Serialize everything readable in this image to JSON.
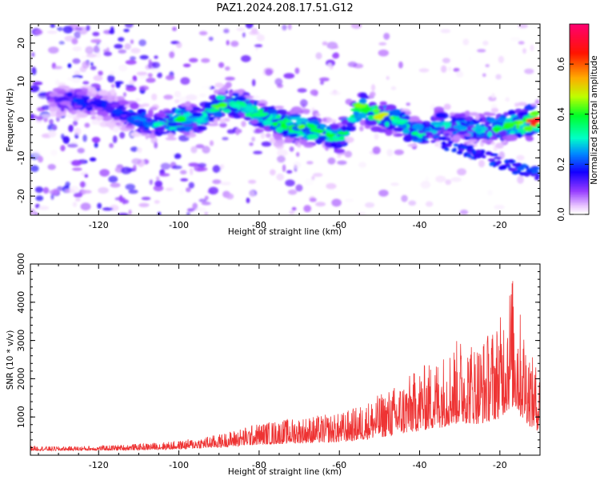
{
  "title": "PAZ1.2024.208.17.51.G12",
  "colors": {
    "snr_line": "#ee3333"
  },
  "chart_data": [
    {
      "type": "heatmap",
      "xlabel": "Height of straight line (km)",
      "ylabel": "Frequency (Hz)",
      "xlim": [
        -137,
        -10
      ],
      "ylim": [
        -25,
        25
      ],
      "xticks": [
        "-120",
        "-100",
        "-80",
        "-60",
        "-40",
        "-20"
      ],
      "yticks": [
        "-20",
        "-10",
        "0",
        "10",
        "20"
      ],
      "colorbar": {
        "label": "Normalized spectral amplitude",
        "range": [
          0,
          0.76
        ],
        "ticks": [
          "0.0",
          "0.2",
          "0.4",
          "0.6"
        ],
        "colormap": "gist_rainbow_r"
      },
      "ridge": [
        {
          "x": -130,
          "y": 5,
          "amp": 0.15
        },
        {
          "x": -125,
          "y": 5,
          "amp": 0.22
        },
        {
          "x": -120,
          "y": 4,
          "amp": 0.18
        },
        {
          "x": -115,
          "y": 2,
          "amp": 0.2
        },
        {
          "x": -110,
          "y": 0,
          "amp": 0.25
        },
        {
          "x": -105,
          "y": -1,
          "amp": 0.32
        },
        {
          "x": -100,
          "y": 0,
          "amp": 0.45
        },
        {
          "x": -95,
          "y": 0,
          "amp": 0.3
        },
        {
          "x": -90,
          "y": 4,
          "amp": 0.45
        },
        {
          "x": -85,
          "y": 4,
          "amp": 0.35
        },
        {
          "x": -80,
          "y": 1,
          "amp": 0.4
        },
        {
          "x": -75,
          "y": -1,
          "amp": 0.4
        },
        {
          "x": -70,
          "y": -2,
          "amp": 0.45
        },
        {
          "x": -65,
          "y": -3,
          "amp": 0.4
        },
        {
          "x": -60,
          "y": -5,
          "amp": 0.35
        },
        {
          "x": -55,
          "y": 3.5,
          "amp": 0.45
        },
        {
          "x": -50,
          "y": 1,
          "amp": 0.5
        },
        {
          "x": -45,
          "y": -0.5,
          "amp": 0.35
        },
        {
          "x": -40,
          "y": -4,
          "amp": 0.35
        },
        {
          "x": -35,
          "y": -1,
          "amp": 0.3
        },
        {
          "x": -30,
          "y": -2,
          "amp": 0.28
        },
        {
          "x": -25,
          "y": -2.5,
          "amp": 0.3
        },
        {
          "x": -20,
          "y": -2,
          "amp": 0.4
        },
        {
          "x": -15,
          "y": -1,
          "amp": 0.45
        },
        {
          "x": -11,
          "y": 0,
          "amp": 0.76
        }
      ]
    },
    {
      "type": "line",
      "xlabel": "Height of straight line (km)",
      "ylabel": "SNR (10 * v/v)",
      "xlim": [
        -137,
        -10
      ],
      "ylim": [
        0,
        5000
      ],
      "xticks": [
        "-120",
        "-100",
        "-80",
        "-60",
        "-40",
        "-20"
      ],
      "yticks": [
        "1000",
        "2000",
        "3000",
        "4000",
        "5000"
      ],
      "envelope": [
        {
          "x": -137,
          "y": 250
        },
        {
          "x": -130,
          "y": 230
        },
        {
          "x": -120,
          "y": 250
        },
        {
          "x": -110,
          "y": 300
        },
        {
          "x": -100,
          "y": 380
        },
        {
          "x": -90,
          "y": 550
        },
        {
          "x": -85,
          "y": 700
        },
        {
          "x": -80,
          "y": 850
        },
        {
          "x": -70,
          "y": 1000
        },
        {
          "x": -60,
          "y": 1100
        },
        {
          "x": -55,
          "y": 1300
        },
        {
          "x": -50,
          "y": 1600
        },
        {
          "x": -45,
          "y": 1900
        },
        {
          "x": -40,
          "y": 2300
        },
        {
          "x": -35,
          "y": 2600
        },
        {
          "x": -30,
          "y": 3100
        },
        {
          "x": -25,
          "y": 3000
        },
        {
          "x": -20,
          "y": 3600
        },
        {
          "x": -17,
          "y": 4800
        },
        {
          "x": -15,
          "y": 3800
        },
        {
          "x": -12,
          "y": 2600
        },
        {
          "x": -10,
          "y": 2200
        }
      ]
    }
  ]
}
